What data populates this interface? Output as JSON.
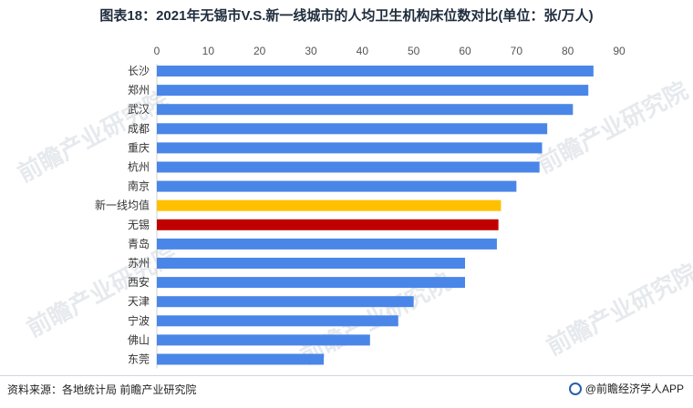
{
  "title": "图表18：2021年无锡市V.S.新一线城市的人均卫生机构床位数对比(单位：张/万人)",
  "source": "资料来源：各地统计局 前瞻产业研究院",
  "brand": "@前瞻经济学人APP",
  "watermark": "前瞻产业研究院",
  "colors": {
    "default": "#4a86e8",
    "highlight_avg": "#ffc000",
    "highlight_city": "#c00000"
  },
  "chart_data": {
    "type": "bar",
    "orientation": "horizontal",
    "title": "图表18：2021年无锡市V.S.新一线城市的人均卫生机构床位数对比(单位：张/万人)",
    "categories": [
      "长沙",
      "郑州",
      "武汉",
      "成都",
      "重庆",
      "杭州",
      "南京",
      "新一线均值",
      "无锡",
      "青岛",
      "苏州",
      "西安",
      "天津",
      "宁波",
      "佛山",
      "东莞"
    ],
    "values": [
      85,
      84,
      81,
      76,
      75,
      74.5,
      70,
      67,
      66.5,
      66.2,
      60,
      60,
      50,
      47,
      41.5,
      32.5
    ],
    "highlight": {
      "新一线均值": "#ffc000",
      "无锡": "#c00000"
    },
    "xlim": [
      0,
      90
    ],
    "xticks": [
      0,
      10,
      20,
      30,
      40,
      50,
      60,
      70,
      80,
      90
    ],
    "xaxis_position": "top",
    "grid": false,
    "legend": "none"
  }
}
